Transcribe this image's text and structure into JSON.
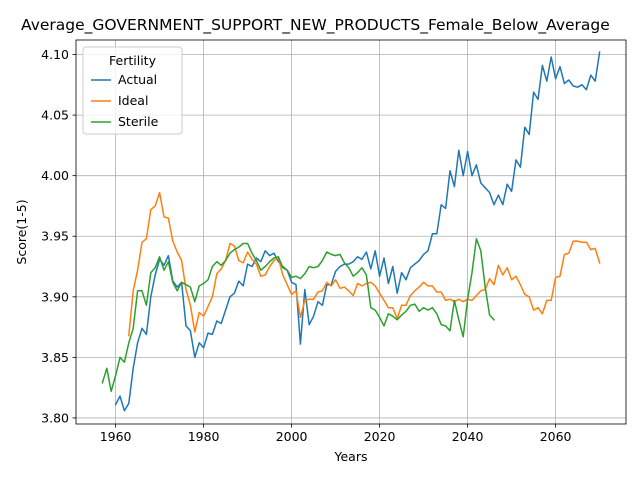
{
  "chart_data": {
    "type": "line",
    "title": "Average_GOVERNMENT_SUPPORT_NEW_PRODUCTS_Female_Below_Average",
    "xlabel": "Years",
    "ylabel": "Score(1-5)",
    "xlim": [
      1951,
      2076
    ],
    "ylim": [
      3.795,
      4.112
    ],
    "xticks": [
      1960,
      1980,
      2000,
      2020,
      2040,
      2060
    ],
    "yticks": [
      3.8,
      3.85,
      3.9,
      3.95,
      4.0,
      4.05,
      4.1
    ],
    "ytick_labels": [
      "3.80",
      "3.85",
      "3.90",
      "3.95",
      "4.00",
      "4.05",
      "4.10"
    ],
    "grid": true,
    "legend": {
      "title": "Fertility",
      "position": "top-left"
    },
    "series": [
      {
        "name": "Actual",
        "color": "#1f77b4",
        "x": [
          1960,
          1961,
          1962,
          1963,
          1964,
          1965,
          1966,
          1967,
          1968,
          1969,
          1970,
          1971,
          1972,
          1973,
          1974,
          1975,
          1976,
          1977,
          1978,
          1979,
          1980,
          1981,
          1982,
          1983,
          1984,
          1985,
          1986,
          1987,
          1988,
          1989,
          1990,
          1991,
          1992,
          1993,
          1994,
          1995,
          1996,
          1997,
          1998,
          1999,
          2000,
          2001,
          2002,
          2003,
          2004,
          2005,
          2006,
          2007,
          2008,
          2009,
          2010,
          2011,
          2012,
          2013,
          2014,
          2015,
          2016,
          2017,
          2018,
          2019,
          2020,
          2021,
          2022,
          2023,
          2024,
          2025,
          2026,
          2027,
          2028,
          2029,
          2030,
          2031,
          2032,
          2033,
          2034,
          2035,
          2036,
          2037,
          2038,
          2039,
          2040,
          2041,
          2042,
          2043,
          2044,
          2045,
          2046,
          2047,
          2048,
          2049,
          2050,
          2051,
          2052,
          2053,
          2054,
          2055,
          2056,
          2057,
          2058,
          2059,
          2060,
          2061,
          2062,
          2063,
          2064,
          2065,
          2066,
          2067,
          2068,
          2069,
          2070
        ],
        "values": [
          3.811,
          3.818,
          3.806,
          3.812,
          3.841,
          3.862,
          3.874,
          3.869,
          3.9,
          3.918,
          3.931,
          3.926,
          3.934,
          3.913,
          3.908,
          3.912,
          3.876,
          3.872,
          3.85,
          3.862,
          3.858,
          3.87,
          3.869,
          3.88,
          3.878,
          3.889,
          3.9,
          3.903,
          3.913,
          3.909,
          3.927,
          3.925,
          3.932,
          3.929,
          3.938,
          3.934,
          3.936,
          3.929,
          3.925,
          3.922,
          3.912,
          3.91,
          3.861,
          3.906,
          3.877,
          3.884,
          3.896,
          3.893,
          3.91,
          3.91,
          3.921,
          3.925,
          3.927,
          3.927,
          3.929,
          3.933,
          3.931,
          3.937,
          3.923,
          3.938,
          3.917,
          3.932,
          3.911,
          3.925,
          3.903,
          3.92,
          3.914,
          3.924,
          3.927,
          3.93,
          3.935,
          3.938,
          3.952,
          3.952,
          3.976,
          3.973,
          4.004,
          3.991,
          4.021,
          4.0,
          4.02,
          4.0,
          4.009,
          3.994,
          3.99,
          3.986,
          3.976,
          3.984,
          3.976,
          3.993,
          3.987,
          4.013,
          4.007,
          4.04,
          4.034,
          4.069,
          4.063,
          4.091,
          4.078,
          4.098,
          4.08,
          4.09,
          4.076,
          4.079,
          4.074,
          4.073,
          4.075,
          4.071,
          4.083,
          4.078,
          4.102
        ]
      },
      {
        "name": "Ideal",
        "color": "#ff7f0e",
        "x": [
          1963,
          1964,
          1965,
          1966,
          1967,
          1968,
          1969,
          1970,
          1971,
          1972,
          1973,
          1974,
          1975,
          1976,
          1977,
          1978,
          1979,
          1980,
          1981,
          1982,
          1983,
          1984,
          1985,
          1986,
          1987,
          1988,
          1989,
          1990,
          1991,
          1992,
          1993,
          1994,
          1995,
          1996,
          1997,
          1998,
          1999,
          2000,
          2001,
          2002,
          2003,
          2004,
          2005,
          2006,
          2007,
          2008,
          2009,
          2010,
          2011,
          2012,
          2013,
          2014,
          2015,
          2016,
          2017,
          2018,
          2019,
          2020,
          2021,
          2022,
          2023,
          2024,
          2025,
          2026,
          2027,
          2028,
          2029,
          2030,
          2031,
          2032,
          2033,
          2034,
          2035,
          2036,
          2037,
          2038,
          2039,
          2040,
          2041,
          2042,
          2043,
          2044,
          2045,
          2046,
          2047,
          2048,
          2049,
          2050,
          2051,
          2052,
          2053,
          2054,
          2055,
          2056,
          2057,
          2058,
          2059,
          2060,
          2061,
          2062,
          2063,
          2064,
          2065,
          2066,
          2067,
          2068,
          2069,
          2070
        ],
        "values": [
          3.868,
          3.905,
          3.922,
          3.945,
          3.948,
          3.972,
          3.975,
          3.986,
          3.966,
          3.965,
          3.946,
          3.937,
          3.93,
          3.906,
          3.893,
          3.871,
          3.887,
          3.884,
          3.892,
          3.9,
          3.919,
          3.923,
          3.93,
          3.944,
          3.942,
          3.93,
          3.928,
          3.937,
          3.931,
          3.927,
          3.917,
          3.918,
          3.925,
          3.93,
          3.932,
          3.918,
          3.91,
          3.902,
          3.905,
          3.883,
          3.897,
          3.898,
          3.898,
          3.904,
          3.905,
          3.912,
          3.909,
          3.914,
          3.907,
          3.908,
          3.905,
          3.901,
          3.911,
          3.909,
          3.911,
          3.912,
          3.909,
          3.903,
          3.897,
          3.891,
          3.891,
          3.882,
          3.893,
          3.893,
          3.901,
          3.905,
          3.908,
          3.912,
          3.909,
          3.909,
          3.904,
          3.904,
          3.897,
          3.898,
          3.896,
          3.898,
          3.896,
          3.898,
          3.897,
          3.901,
          3.905,
          3.906,
          3.915,
          3.91,
          3.926,
          3.918,
          3.924,
          3.914,
          3.917,
          3.91,
          3.902,
          3.9,
          3.889,
          3.891,
          3.886,
          3.897,
          3.897,
          3.916,
          3.917,
          3.935,
          3.936,
          3.946,
          3.946,
          3.945,
          3.945,
          3.939,
          3.94,
          3.928
        ]
      },
      {
        "name": "Sterile",
        "color": "#2ca02c",
        "x": [
          1957,
          1958,
          1959,
          1960,
          1961,
          1962,
          1963,
          1964,
          1965,
          1966,
          1967,
          1968,
          1969,
          1970,
          1971,
          1972,
          1973,
          1974,
          1975,
          1976,
          1977,
          1978,
          1979,
          1980,
          1981,
          1982,
          1983,
          1984,
          1985,
          1986,
          1987,
          1988,
          1989,
          1990,
          1991,
          1992,
          1993,
          1994,
          1995,
          1996,
          1997,
          1998,
          1999,
          2000,
          2001,
          2002,
          2003,
          2004,
          2005,
          2006,
          2007,
          2008,
          2009,
          2010,
          2011,
          2012,
          2013,
          2014,
          2015,
          2016,
          2017,
          2018,
          2019,
          2020,
          2021,
          2022,
          2023,
          2024,
          2025,
          2026,
          2027,
          2028,
          2029,
          2030,
          2031,
          2032,
          2033,
          2034,
          2035,
          2036,
          2037,
          2038,
          2039,
          2040,
          2041,
          2042,
          2043,
          2044,
          2045,
          2046
        ],
        "values": [
          3.829,
          3.841,
          3.822,
          3.835,
          3.85,
          3.846,
          3.862,
          3.874,
          3.905,
          3.905,
          3.893,
          3.92,
          3.924,
          3.933,
          3.922,
          3.929,
          3.912,
          3.905,
          3.912,
          3.91,
          3.908,
          3.896,
          3.909,
          3.911,
          3.914,
          3.925,
          3.929,
          3.926,
          3.93,
          3.936,
          3.939,
          3.941,
          3.944,
          3.944,
          3.936,
          3.93,
          3.922,
          3.925,
          3.929,
          3.932,
          3.933,
          3.924,
          3.922,
          3.916,
          3.917,
          3.915,
          3.919,
          3.925,
          3.924,
          3.925,
          3.93,
          3.937,
          3.935,
          3.934,
          3.935,
          3.928,
          3.924,
          3.917,
          3.92,
          3.924,
          3.918,
          3.891,
          3.889,
          3.883,
          3.876,
          3.886,
          3.884,
          3.881,
          3.885,
          3.888,
          3.893,
          3.894,
          3.888,
          3.891,
          3.889,
          3.891,
          3.886,
          3.877,
          3.876,
          3.872,
          3.897,
          3.881,
          3.867,
          3.898,
          3.92,
          3.948,
          3.938,
          3.908,
          3.885,
          3.881
        ]
      }
    ]
  }
}
